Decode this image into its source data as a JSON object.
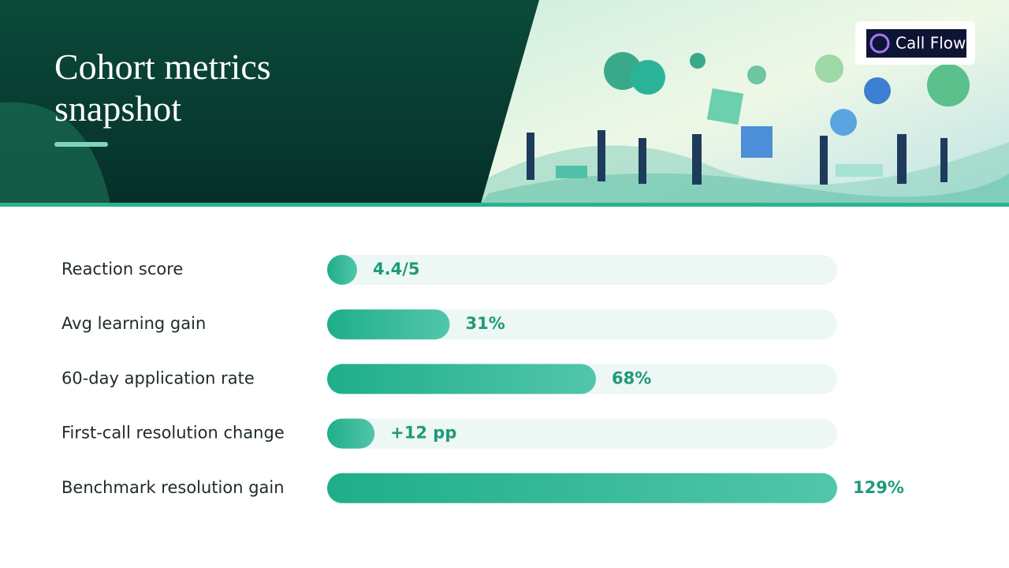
{
  "header": {
    "title": "Cohort metrics snapshot",
    "logo": "Call Flow"
  },
  "chart_data": {
    "type": "bar",
    "orientation": "horizontal",
    "categories": [
      "Reaction score",
      "Avg learning gain",
      "60-day application rate",
      "First-call resolution change",
      "Benchmark resolution gain"
    ],
    "values": [
      4.4,
      31,
      68,
      12,
      129
    ],
    "value_labels": [
      "4.4/5",
      "31%",
      "68%",
      "+12 pp",
      "129%"
    ],
    "xlim": [
      0,
      129
    ],
    "color": "#1fae8a"
  }
}
